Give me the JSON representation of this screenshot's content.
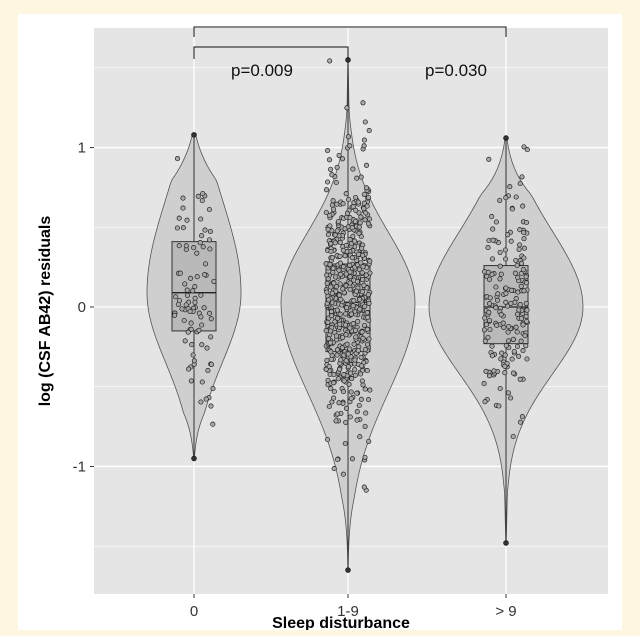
{
  "chart_data": {
    "type": "violin",
    "xlabel": "Sleep disturbance",
    "ylabel": "log (CSF AB42) residuals",
    "categories": [
      "0",
      "1-9",
      "> 9"
    ],
    "ylim": [
      -1.8,
      1.75
    ],
    "yticks": [
      -1,
      0,
      1
    ],
    "ytick_labels": [
      "-1",
      "0",
      "1"
    ],
    "grid": true,
    "groups": [
      {
        "category": "0",
        "min": -0.95,
        "q1": -0.15,
        "median": 0.09,
        "q3": 0.41,
        "max": 1.08,
        "n_points": 90
      },
      {
        "category": "1-9",
        "min": -1.65,
        "q1": -0.28,
        "median": 0.03,
        "q3": 0.27,
        "max": 1.55,
        "n_points": 620
      },
      {
        "category": "> 9",
        "min": -1.48,
        "q1": -0.23,
        "median": 0.0,
        "q3": 0.26,
        "max": 1.06,
        "n_points": 190
      }
    ],
    "comparisons": [
      {
        "from": "0",
        "to": "1-9",
        "label": "p=0.009"
      },
      {
        "from": "0",
        "to": "> 9",
        "label": "p=0.030"
      }
    ],
    "colors": {
      "panel": "#e5e5e5",
      "violin": "#cfcfcf",
      "box": "#b9b9b9",
      "points": "#a9a9a9",
      "grid": "#ffffff"
    }
  }
}
